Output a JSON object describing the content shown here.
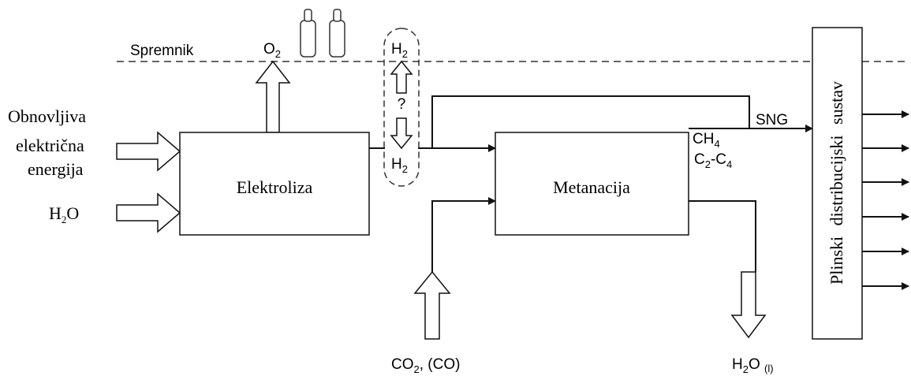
{
  "storage_label": "Spremnik",
  "o2": {
    "base": "O",
    "sub": "2"
  },
  "h2_top": {
    "base": "H",
    "sub": "2"
  },
  "question": "?",
  "h2_bottom": {
    "base": "H",
    "sub": "2"
  },
  "input_energy": [
    "Obnovljiva",
    "električna",
    "energija"
  ],
  "input_water": {
    "base": "H",
    "sub": "2",
    "rest": "O"
  },
  "electrolysis": "Elektroliza",
  "methanation": "Metanacija",
  "sng": "SNG",
  "ch4": {
    "base": "CH",
    "sub": "4"
  },
  "c2c4": {
    "base": "C",
    "sub": "2",
    "mid": "-C",
    "sub2": "4"
  },
  "co2": {
    "base": "CO",
    "sub": "2",
    "rest": ", (CO)"
  },
  "water_out": {
    "base": "H",
    "sub": "2",
    "rest": "O ",
    "sub2": "(l)"
  },
  "distribution": "Plinski distribucijski sustav"
}
